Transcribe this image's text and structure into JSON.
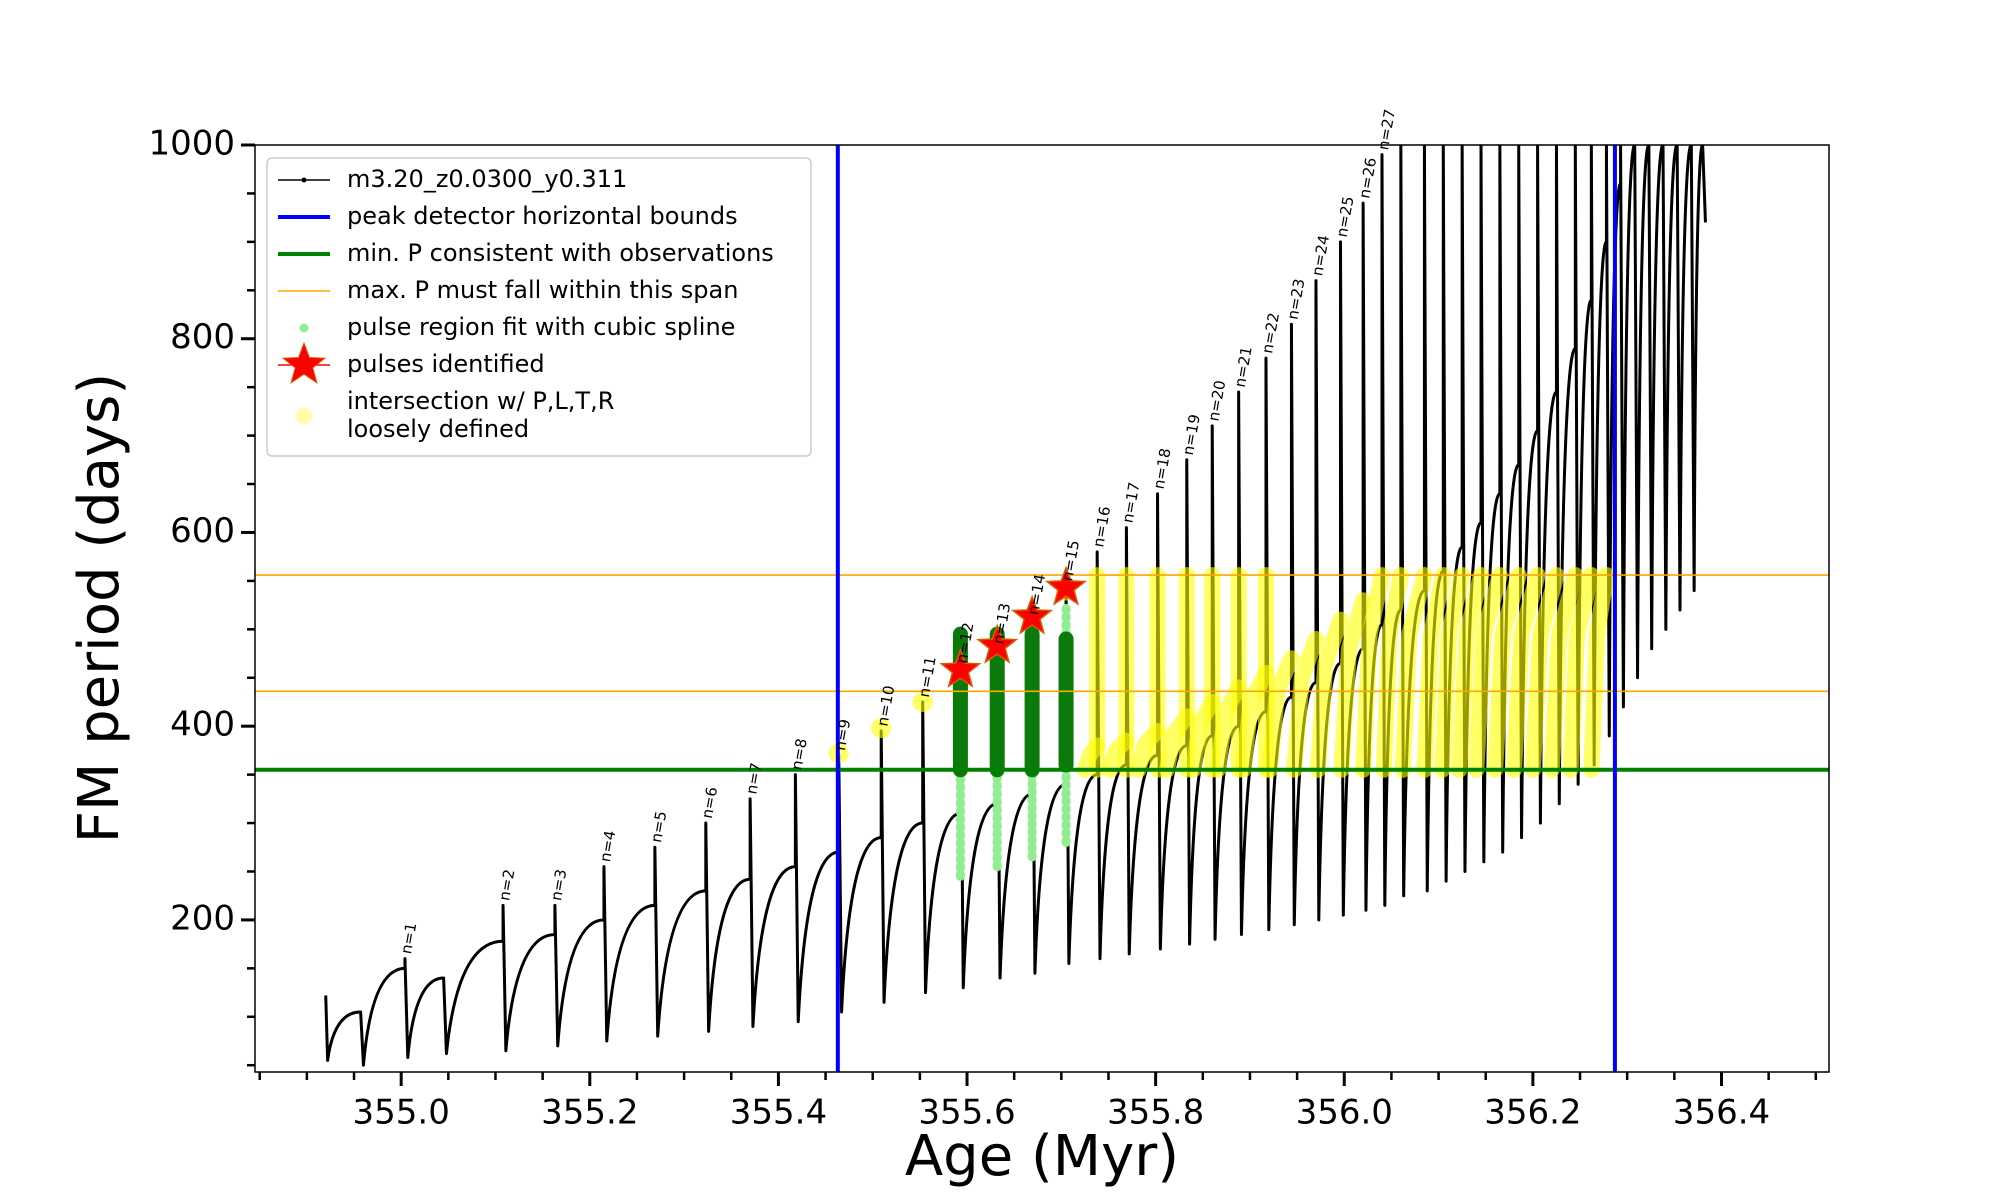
{
  "chart_data": {
    "type": "line",
    "xlabel": "Age (Myr)",
    "ylabel": "FM period (days)",
    "xlim": [
      354.845,
      356.514
    ],
    "ylim": [
      43,
      1000
    ],
    "xticks": [
      {
        "value": 355.0,
        "label": "355.0"
      },
      {
        "value": 355.2,
        "label": "355.2"
      },
      {
        "value": 355.4,
        "label": "355.4"
      },
      {
        "value": 355.6,
        "label": "355.6"
      },
      {
        "value": 355.8,
        "label": "355.8"
      },
      {
        "value": 356.0,
        "label": "356.0"
      },
      {
        "value": 356.2,
        "label": "356.2"
      },
      {
        "value": 356.4,
        "label": "356.4"
      }
    ],
    "xminorticks": [
      354.85,
      354.9,
      354.95,
      355.05,
      355.1,
      355.15,
      355.25,
      355.3,
      355.35,
      355.45,
      355.5,
      355.55,
      355.65,
      355.7,
      355.75,
      355.85,
      355.9,
      355.95,
      356.05,
      356.1,
      356.15,
      356.25,
      356.3,
      356.35,
      356.45,
      356.5
    ],
    "yticks": [
      200,
      400,
      600,
      800,
      1000
    ],
    "yminorticks": [
      50,
      100,
      150,
      250,
      300,
      350,
      450,
      500,
      550,
      650,
      700,
      750,
      850,
      900,
      950
    ],
    "legend": "upper left",
    "series": [
      {
        "name": "m3.20_z0.0300_y0.311",
        "color": "#000000",
        "style": "line",
        "x": [
          354.92,
          354.922,
          354.957,
          354.957,
          354.96,
          355.004,
          355.004,
          355.007,
          355.045,
          355.045,
          355.048,
          355.108,
          355.108,
          355.111,
          355.163,
          355.163,
          355.166,
          355.215,
          355.215,
          355.218,
          355.269,
          355.269,
          355.272,
          355.323,
          355.323,
          355.326,
          355.37,
          355.37,
          355.373,
          355.418,
          355.418,
          355.421,
          355.464,
          355.464,
          355.467,
          355.509,
          355.509,
          355.512,
          355.553,
          355.553,
          355.556,
          355.593,
          355.593,
          355.596,
          355.632,
          355.632,
          355.635,
          355.669,
          355.669,
          355.672,
          355.705,
          355.705,
          355.708,
          355.738,
          355.738,
          355.741,
          355.769,
          355.769,
          355.772,
          355.802,
          355.802,
          355.805,
          355.833,
          355.833,
          355.836,
          355.86,
          355.86,
          355.863,
          355.888,
          355.888,
          355.891,
          355.917,
          355.917,
          355.92,
          355.944,
          355.944,
          355.947,
          355.97,
          355.97,
          355.973,
          355.996,
          355.996,
          355.999,
          356.02,
          356.02,
          356.023,
          356.04,
          356.04,
          356.043,
          356.06,
          356.06,
          356.063,
          356.085,
          356.085,
          356.088,
          356.105,
          356.105,
          356.108,
          356.125,
          356.125,
          356.128,
          356.145,
          356.145,
          356.148,
          356.165,
          356.165,
          356.168,
          356.185,
          356.185,
          356.188,
          356.205,
          356.205,
          356.208,
          356.225,
          356.225,
          356.228,
          356.245,
          356.245,
          356.248,
          356.262,
          356.262,
          356.265,
          356.278,
          356.278,
          356.281,
          356.293,
          356.293,
          356.296,
          356.308,
          356.308,
          356.311,
          356.323,
          356.323,
          356.326,
          356.338,
          356.338,
          356.341,
          356.353,
          356.353,
          356.356,
          356.368,
          356.368,
          356.371,
          356.38,
          356.38,
          356.383
        ],
        "values": [
          122,
          55,
          105,
          105,
          50,
          150,
          160,
          58,
          140,
          140,
          62,
          178,
          215,
          65,
          185,
          215,
          70,
          200,
          255,
          75,
          215,
          275,
          80,
          230,
          300,
          85,
          242,
          325,
          90,
          255,
          350,
          95,
          270,
          370,
          105,
          285,
          395,
          115,
          300,
          425,
          125,
          310,
          460,
          130,
          320,
          480,
          140,
          330,
          510,
          145,
          340,
          545,
          155,
          350,
          580,
          160,
          360,
          605,
          165,
          370,
          640,
          170,
          380,
          675,
          175,
          390,
          710,
          180,
          400,
          745,
          185,
          415,
          780,
          190,
          430,
          815,
          195,
          445,
          860,
          200,
          465,
          900,
          205,
          480,
          940,
          210,
          505,
          990,
          215,
          520,
          1000,
          225,
          540,
          1000,
          230,
          560,
          1000,
          240,
          585,
          1000,
          250,
          610,
          1000,
          260,
          640,
          1000,
          270,
          670,
          1000,
          285,
          705,
          1000,
          300,
          745,
          1000,
          320,
          790,
          1000,
          340,
          840,
          1000,
          360,
          900,
          1000,
          390,
          960,
          1000,
          420,
          1000,
          1000,
          450,
          1000,
          1000,
          480,
          1000,
          1000,
          500,
          1000,
          1000,
          520,
          1000,
          1000,
          540,
          1000,
          1000,
          920
        ]
      },
      {
        "name": "peak detector horizontal bounds",
        "color": "#0000ff",
        "style": "vline",
        "x": [
          355.463,
          356.287
        ]
      },
      {
        "name": "min. P consistent with observations",
        "color": "#008000",
        "style": "hline",
        "values": [
          355
        ]
      },
      {
        "name": "max. P must fall within this span",
        "color": "#ffa500",
        "style": "hline",
        "values": [
          436,
          556
        ]
      },
      {
        "name": "pulse region fit with cubic spline",
        "color": "#90ee90",
        "style": "range",
        "x": [
          355.593,
          355.632,
          355.669,
          355.705
        ],
        "low": [
          245,
          255,
          265,
          280
        ],
        "high": [
          500,
          500,
          500,
          525
        ],
        "core_color": "#0a7a0a",
        "core_low": [
          355,
          355,
          355,
          360
        ],
        "core_high": [
          495,
          495,
          495,
          490
        ]
      },
      {
        "name": "pulses identified",
        "color": "#ff0000",
        "style": "star",
        "x": [
          355.593,
          355.632,
          355.669,
          355.705
        ],
        "values": [
          458,
          483,
          513,
          543
        ]
      },
      {
        "name": "intersection w/ P,L,T,R\nloosely defined",
        "color": "#ffff00",
        "style": "band",
        "x": [
          355.464,
          null,
          355.509,
          null,
          355.553,
          null,
          355.705,
          null,
          355.738,
          355.738,
          null,
          355.769,
          355.769,
          null,
          355.802,
          355.802,
          null,
          355.833,
          355.833,
          null,
          355.86,
          355.86,
          null,
          355.888,
          355.888,
          null,
          355.917,
          355.917,
          null,
          355.725,
          355.73,
          355.738,
          null,
          355.752,
          355.758,
          355.769,
          null,
          355.782,
          355.789,
          355.802,
          null,
          355.812,
          355.819,
          355.833,
          null,
          355.84,
          355.847,
          355.86,
          null,
          355.866,
          355.874,
          355.888,
          null,
          355.893,
          355.901,
          355.917,
          null,
          355.921,
          355.929,
          355.944,
          null,
          355.947,
          355.955,
          355.97,
          null,
          355.972,
          355.98,
          355.996,
          null,
          355.997,
          356.005,
          356.02,
          null,
          356.02,
          356.027,
          356.04,
          null,
          356.042,
          356.048,
          356.06,
          null,
          356.062,
          356.069,
          356.085,
          null,
          356.085,
          356.092,
          356.105,
          null,
          356.104,
          356.111,
          356.125,
          null,
          356.122,
          356.13,
          356.145,
          null,
          356.14,
          356.148,
          356.165,
          null,
          356.16,
          356.168,
          356.185,
          null,
          356.18,
          356.188,
          356.205,
          null,
          356.2,
          356.208,
          356.225,
          null,
          356.22,
          356.228,
          356.245,
          null,
          356.24,
          356.247,
          356.262,
          null,
          356.262,
          356.268,
          356.278
        ],
        "values": [
          372,
          null,
          398,
          null,
          425,
          null,
          540,
          null,
          355,
          556,
          null,
          355,
          556,
          null,
          355,
          556,
          null,
          355,
          556,
          null,
          355,
          556,
          null,
          355,
          556,
          null,
          355,
          556,
          null,
          355,
          370,
          380,
          null,
          355,
          375,
          385,
          null,
          355,
          382,
          395,
          null,
          355,
          392,
          410,
          null,
          355,
          403,
          425,
          null,
          355,
          415,
          440,
          null,
          355,
          425,
          455,
          null,
          355,
          437,
          470,
          null,
          355,
          450,
          490,
          null,
          355,
          465,
          510,
          null,
          355,
          480,
          530,
          null,
          355,
          495,
          556,
          null,
          355,
          495,
          556,
          null,
          355,
          495,
          556,
          null,
          355,
          495,
          556,
          null,
          355,
          495,
          556,
          null,
          355,
          495,
          556,
          null,
          355,
          495,
          556,
          null,
          355,
          495,
          556,
          null,
          355,
          495,
          556,
          null,
          355,
          495,
          556,
          null,
          355,
          495,
          556,
          null,
          355,
          495,
          556,
          null,
          355,
          495,
          556
        ]
      }
    ],
    "annotations": [
      {
        "text": "n=1",
        "x": 355.004,
        "y": 160
      },
      {
        "text": "n=2",
        "x": 355.108,
        "y": 215
      },
      {
        "text": "n=3",
        "x": 355.163,
        "y": 215
      },
      {
        "text": "n=4",
        "x": 355.215,
        "y": 255
      },
      {
        "text": "n=5",
        "x": 355.269,
        "y": 275
      },
      {
        "text": "n=6",
        "x": 355.323,
        "y": 300
      },
      {
        "text": "n=7",
        "x": 355.37,
        "y": 325
      },
      {
        "text": "n=8",
        "x": 355.418,
        "y": 350
      },
      {
        "text": "n=9",
        "x": 355.464,
        "y": 370
      },
      {
        "text": "n=10",
        "x": 355.509,
        "y": 395
      },
      {
        "text": "n=11",
        "x": 355.553,
        "y": 425
      },
      {
        "text": "n=12",
        "x": 355.593,
        "y": 460
      },
      {
        "text": "n=13",
        "x": 355.632,
        "y": 480
      },
      {
        "text": "n=14",
        "x": 355.669,
        "y": 510
      },
      {
        "text": "n=15",
        "x": 355.705,
        "y": 545
      },
      {
        "text": "n=16",
        "x": 355.738,
        "y": 580
      },
      {
        "text": "n=17",
        "x": 355.769,
        "y": 605
      },
      {
        "text": "n=18",
        "x": 355.802,
        "y": 640
      },
      {
        "text": "n=19",
        "x": 355.833,
        "y": 675
      },
      {
        "text": "n=20",
        "x": 355.86,
        "y": 710
      },
      {
        "text": "n=21",
        "x": 355.888,
        "y": 745
      },
      {
        "text": "n=22",
        "x": 355.917,
        "y": 780
      },
      {
        "text": "n=23",
        "x": 355.944,
        "y": 815
      },
      {
        "text": "n=24",
        "x": 355.97,
        "y": 860
      },
      {
        "text": "n=25",
        "x": 355.996,
        "y": 900
      },
      {
        "text": "n=26",
        "x": 356.02,
        "y": 940
      },
      {
        "text": "n=27",
        "x": 356.04,
        "y": 990
      }
    ]
  }
}
